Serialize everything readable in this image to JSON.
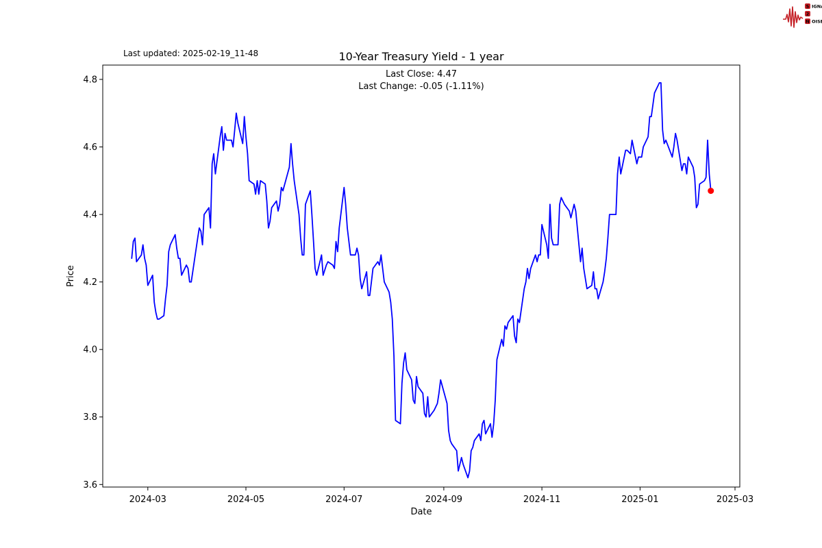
{
  "header": {
    "last_updated": "Last updated: 2025-02-19_11-48"
  },
  "logo": {
    "s": "S",
    "ignal": "IGNAL",
    "two": "2",
    "n": "N",
    "oise": "OISE",
    "accent_color": "#c41e24"
  },
  "chart_data": {
    "type": "line",
    "title": "10-Year Treasury Yield - 1 year",
    "subtitle_line1": "Last Close: 4.47",
    "subtitle_line2": "Last Change: -0.05 (-1.11%)",
    "last_close": 4.47,
    "last_change": -0.05,
    "last_change_pct": "-1.11%",
    "xlabel": "Date",
    "ylabel": "Price",
    "grid": false,
    "legend": "none",
    "line_color": "#0000ff",
    "marker_color": "#ff0000",
    "ylim": [
      3.5925,
      4.8425
    ],
    "xlim": [
      "2024-02-02",
      "2025-03-04"
    ],
    "yticks": [
      3.6,
      3.8,
      4.0,
      4.2,
      4.4,
      4.6,
      4.8
    ],
    "ytick_labels": [
      "3.6",
      "3.8",
      "4.0",
      "4.2",
      "4.4",
      "4.6",
      "4.8"
    ],
    "xticks": [
      "2024-03-01",
      "2024-05-01",
      "2024-07-01",
      "2024-09-01",
      "2024-11-01",
      "2025-01-01",
      "2025-03-01"
    ],
    "xtick_labels": [
      "2024-03",
      "2024-05",
      "2024-07",
      "2024-09",
      "2024-11",
      "2025-01",
      "2025-03"
    ],
    "dates": [
      "2024-02-20",
      "2024-02-21",
      "2024-02-22",
      "2024-02-23",
      "2024-02-26",
      "2024-02-27",
      "2024-02-28",
      "2024-02-29",
      "2024-03-01",
      "2024-03-04",
      "2024-03-05",
      "2024-03-06",
      "2024-03-07",
      "2024-03-08",
      "2024-03-11",
      "2024-03-12",
      "2024-03-13",
      "2024-03-14",
      "2024-03-15",
      "2024-03-18",
      "2024-03-19",
      "2024-03-20",
      "2024-03-21",
      "2024-03-22",
      "2024-03-25",
      "2024-03-26",
      "2024-03-27",
      "2024-03-28",
      "2024-04-01",
      "2024-04-02",
      "2024-04-03",
      "2024-04-04",
      "2024-04-05",
      "2024-04-08",
      "2024-04-09",
      "2024-04-10",
      "2024-04-11",
      "2024-04-12",
      "2024-04-15",
      "2024-04-16",
      "2024-04-17",
      "2024-04-18",
      "2024-04-19",
      "2024-04-22",
      "2024-04-23",
      "2024-04-24",
      "2024-04-25",
      "2024-04-26",
      "2024-04-29",
      "2024-04-30",
      "2024-05-01",
      "2024-05-02",
      "2024-05-03",
      "2024-05-06",
      "2024-05-07",
      "2024-05-08",
      "2024-05-09",
      "2024-05-10",
      "2024-05-13",
      "2024-05-14",
      "2024-05-15",
      "2024-05-16",
      "2024-05-17",
      "2024-05-20",
      "2024-05-21",
      "2024-05-22",
      "2024-05-23",
      "2024-05-24",
      "2024-05-28",
      "2024-05-29",
      "2024-05-30",
      "2024-05-31",
      "2024-06-03",
      "2024-06-04",
      "2024-06-05",
      "2024-06-06",
      "2024-06-07",
      "2024-06-10",
      "2024-06-11",
      "2024-06-12",
      "2024-06-13",
      "2024-06-14",
      "2024-06-17",
      "2024-06-18",
      "2024-06-20",
      "2024-06-21",
      "2024-06-24",
      "2024-06-25",
      "2024-06-26",
      "2024-06-27",
      "2024-06-28",
      "2024-07-01",
      "2024-07-02",
      "2024-07-03",
      "2024-07-05",
      "2024-07-08",
      "2024-07-09",
      "2024-07-10",
      "2024-07-11",
      "2024-07-12",
      "2024-07-15",
      "2024-07-16",
      "2024-07-17",
      "2024-07-18",
      "2024-07-19",
      "2024-07-22",
      "2024-07-23",
      "2024-07-24",
      "2024-07-25",
      "2024-07-26",
      "2024-07-29",
      "2024-07-30",
      "2024-07-31",
      "2024-08-01",
      "2024-08-02",
      "2024-08-05",
      "2024-08-06",
      "2024-08-07",
      "2024-08-08",
      "2024-08-09",
      "2024-08-12",
      "2024-08-13",
      "2024-08-14",
      "2024-08-15",
      "2024-08-16",
      "2024-08-19",
      "2024-08-20",
      "2024-08-21",
      "2024-08-22",
      "2024-08-23",
      "2024-08-26",
      "2024-08-27",
      "2024-08-28",
      "2024-08-29",
      "2024-08-30",
      "2024-09-03",
      "2024-09-04",
      "2024-09-05",
      "2024-09-06",
      "2024-09-09",
      "2024-09-10",
      "2024-09-11",
      "2024-09-12",
      "2024-09-13",
      "2024-09-16",
      "2024-09-17",
      "2024-09-18",
      "2024-09-19",
      "2024-09-20",
      "2024-09-23",
      "2024-09-24",
      "2024-09-25",
      "2024-09-26",
      "2024-09-27",
      "2024-09-30",
      "2024-10-01",
      "2024-10-02",
      "2024-10-03",
      "2024-10-04",
      "2024-10-07",
      "2024-10-08",
      "2024-10-09",
      "2024-10-10",
      "2024-10-11",
      "2024-10-14",
      "2024-10-15",
      "2024-10-16",
      "2024-10-17",
      "2024-10-18",
      "2024-10-21",
      "2024-10-22",
      "2024-10-23",
      "2024-10-24",
      "2024-10-25",
      "2024-10-28",
      "2024-10-29",
      "2024-10-30",
      "2024-10-31",
      "2024-11-01",
      "2024-11-04",
      "2024-11-05",
      "2024-11-06",
      "2024-11-07",
      "2024-11-08",
      "2024-11-11",
      "2024-11-12",
      "2024-11-13",
      "2024-11-14",
      "2024-11-15",
      "2024-11-18",
      "2024-11-19",
      "2024-11-20",
      "2024-11-21",
      "2024-11-22",
      "2024-11-25",
      "2024-11-26",
      "2024-11-27",
      "2024-11-29",
      "2024-12-02",
      "2024-12-03",
      "2024-12-04",
      "2024-12-05",
      "2024-12-06",
      "2024-12-09",
      "2024-12-10",
      "2024-12-11",
      "2024-12-12",
      "2024-12-13",
      "2024-12-16",
      "2024-12-17",
      "2024-12-18",
      "2024-12-19",
      "2024-12-20",
      "2024-12-23",
      "2024-12-24",
      "2024-12-26",
      "2024-12-27",
      "2024-12-30",
      "2024-12-31",
      "2025-01-02",
      "2025-01-03",
      "2025-01-06",
      "2025-01-07",
      "2025-01-08",
      "2025-01-10",
      "2025-01-13",
      "2025-01-14",
      "2025-01-15",
      "2025-01-16",
      "2025-01-17",
      "2025-01-21",
      "2025-01-22",
      "2025-01-23",
      "2025-01-24",
      "2025-01-27",
      "2025-01-28",
      "2025-01-29",
      "2025-01-30",
      "2025-01-31",
      "2025-02-03",
      "2025-02-04",
      "2025-02-05",
      "2025-02-06",
      "2025-02-07",
      "2025-02-10",
      "2025-02-11",
      "2025-02-12",
      "2025-02-13",
      "2025-02-14"
    ],
    "values": [
      4.27,
      4.32,
      4.33,
      4.26,
      4.28,
      4.31,
      4.27,
      4.25,
      4.19,
      4.22,
      4.14,
      4.11,
      4.09,
      4.09,
      4.1,
      4.15,
      4.19,
      4.29,
      4.31,
      4.34,
      4.3,
      4.27,
      4.27,
      4.22,
      4.25,
      4.24,
      4.2,
      4.2,
      4.33,
      4.36,
      4.35,
      4.31,
      4.4,
      4.42,
      4.36,
      4.55,
      4.58,
      4.52,
      4.63,
      4.66,
      4.59,
      4.64,
      4.62,
      4.62,
      4.6,
      4.65,
      4.7,
      4.67,
      4.61,
      4.69,
      4.63,
      4.58,
      4.5,
      4.49,
      4.46,
      4.5,
      4.46,
      4.5,
      4.49,
      4.44,
      4.36,
      4.38,
      4.42,
      4.44,
      4.41,
      4.43,
      4.48,
      4.47,
      4.54,
      4.61,
      4.55,
      4.5,
      4.4,
      4.33,
      4.28,
      4.28,
      4.43,
      4.47,
      4.4,
      4.32,
      4.24,
      4.22,
      4.28,
      4.22,
      4.25,
      4.26,
      4.25,
      4.24,
      4.32,
      4.29,
      4.36,
      4.48,
      4.43,
      4.36,
      4.28,
      4.28,
      4.3,
      4.28,
      4.21,
      4.18,
      4.23,
      4.16,
      4.16,
      4.2,
      4.24,
      4.26,
      4.25,
      4.28,
      4.24,
      4.2,
      4.17,
      4.14,
      4.09,
      3.98,
      3.79,
      3.78,
      3.9,
      3.96,
      3.99,
      3.94,
      3.91,
      3.85,
      3.84,
      3.92,
      3.89,
      3.87,
      3.81,
      3.8,
      3.86,
      3.8,
      3.82,
      3.83,
      3.84,
      3.87,
      3.91,
      3.84,
      3.76,
      3.73,
      3.72,
      3.7,
      3.64,
      3.66,
      3.68,
      3.66,
      3.62,
      3.64,
      3.7,
      3.71,
      3.73,
      3.75,
      3.73,
      3.78,
      3.79,
      3.75,
      3.78,
      3.74,
      3.78,
      3.85,
      3.97,
      4.03,
      4.01,
      4.07,
      4.06,
      4.08,
      4.1,
      4.04,
      4.02,
      4.09,
      4.08,
      4.18,
      4.2,
      4.24,
      4.21,
      4.24,
      4.28,
      4.26,
      4.28,
      4.28,
      4.37,
      4.31,
      4.27,
      4.43,
      4.33,
      4.31,
      4.31,
      4.43,
      4.45,
      4.44,
      4.43,
      4.41,
      4.39,
      4.41,
      4.43,
      4.41,
      4.26,
      4.3,
      4.24,
      4.18,
      4.19,
      4.23,
      4.18,
      4.18,
      4.15,
      4.2,
      4.23,
      4.27,
      4.33,
      4.4,
      4.4,
      4.4,
      4.52,
      4.57,
      4.52,
      4.59,
      4.59,
      4.58,
      4.62,
      4.55,
      4.57,
      4.57,
      4.6,
      4.63,
      4.69,
      4.69,
      4.76,
      4.79,
      4.79,
      4.65,
      4.61,
      4.62,
      4.57,
      4.6,
      4.64,
      4.62,
      4.53,
      4.55,
      4.55,
      4.52,
      4.57,
      4.54,
      4.51,
      4.42,
      4.43,
      4.49,
      4.5,
      4.51,
      4.62,
      4.52,
      4.47
    ]
  }
}
